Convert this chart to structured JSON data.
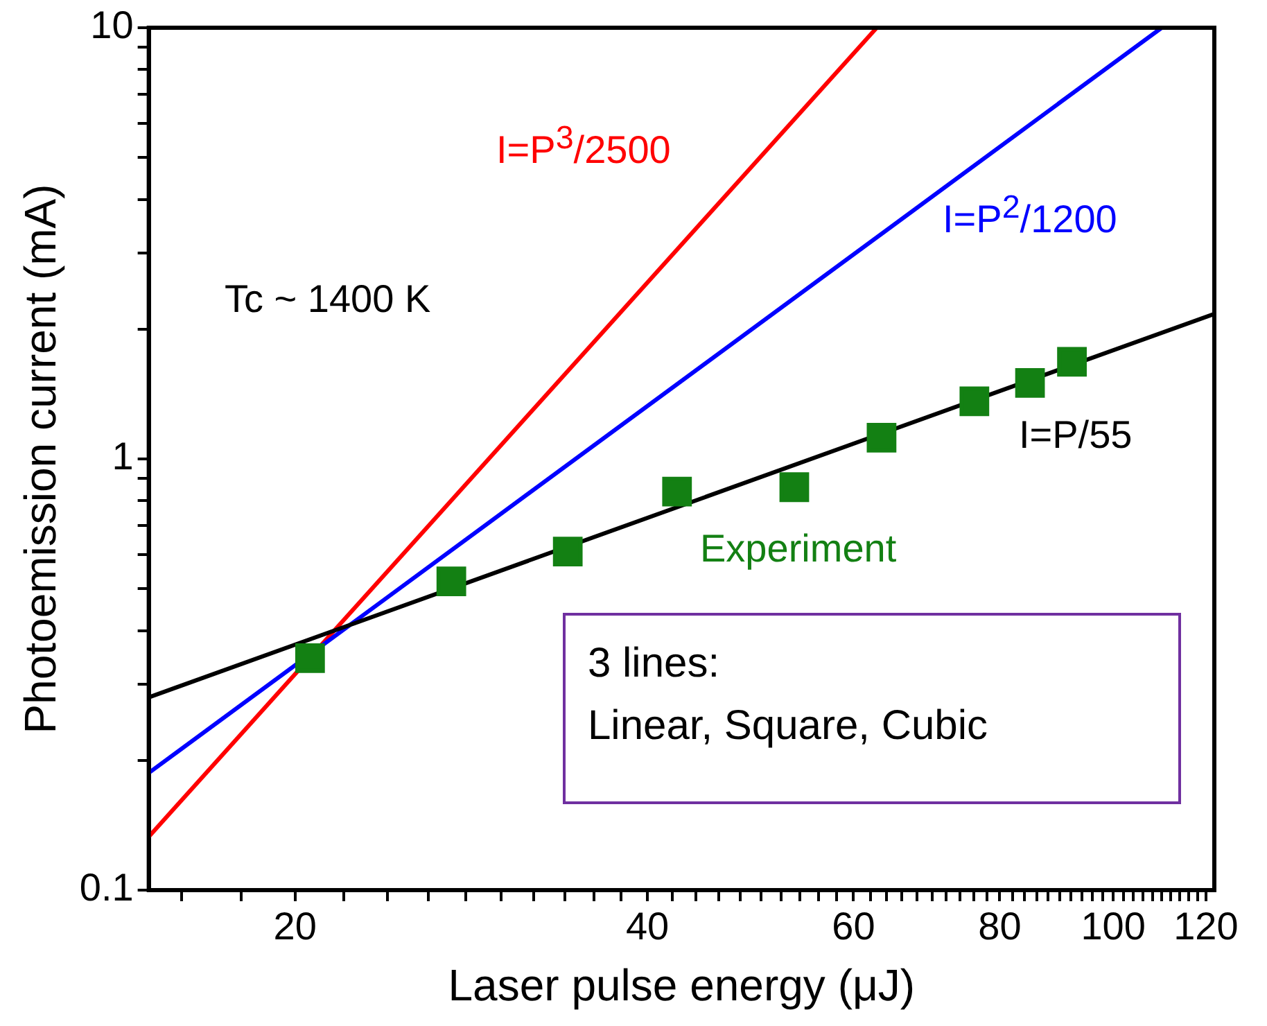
{
  "chart_data": {
    "type": "scatter",
    "xlabel": "Laser pulse energy (μJ)",
    "ylabel": "Photoemission current (mA)",
    "log": "xy",
    "grid": false,
    "legend": false,
    "xlim": [
      15,
      122
    ],
    "ylim": [
      0.1,
      10
    ],
    "xticks": [
      {
        "value": 16,
        "label": null
      },
      {
        "value": 18,
        "label": null
      },
      20,
      {
        "value": 22,
        "label": null
      },
      {
        "value": 24,
        "label": null
      },
      {
        "value": 26,
        "label": null
      },
      {
        "value": 28,
        "label": null
      },
      {
        "value": 30,
        "label": null
      },
      {
        "value": 32,
        "label": null
      },
      {
        "value": 34,
        "label": null
      },
      {
        "value": 36,
        "label": null
      },
      {
        "value": 38,
        "label": null
      },
      40,
      {
        "value": 42,
        "label": null
      },
      {
        "value": 44,
        "label": null
      },
      {
        "value": 46,
        "label": null
      },
      {
        "value": 48,
        "label": null
      },
      {
        "value": 50,
        "label": null
      },
      {
        "value": 52,
        "label": null
      },
      {
        "value": 54,
        "label": null
      },
      {
        "value": 56,
        "label": null
      },
      {
        "value": 58,
        "label": null
      },
      60,
      {
        "value": 62,
        "label": null
      },
      {
        "value": 64,
        "label": null
      },
      {
        "value": 66,
        "label": null
      },
      {
        "value": 68,
        "label": null
      },
      {
        "value": 70,
        "label": null
      },
      {
        "value": 72,
        "label": null
      },
      {
        "value": 74,
        "label": null
      },
      {
        "value": 76,
        "label": null
      },
      {
        "value": 78,
        "label": null
      },
      80,
      {
        "value": 82,
        "label": null
      },
      {
        "value": 84,
        "label": null
      },
      {
        "value": 86,
        "label": null
      },
      {
        "value": 88,
        "label": null
      },
      {
        "value": 90,
        "label": null
      },
      {
        "value": 92,
        "label": null
      },
      {
        "value": 94,
        "label": null
      },
      {
        "value": 96,
        "label": null
      },
      {
        "value": 98,
        "label": null
      },
      100,
      {
        "value": 102,
        "label": null
      },
      {
        "value": 104,
        "label": null
      },
      {
        "value": 106,
        "label": null
      },
      {
        "value": 108,
        "label": null
      },
      {
        "value": 110,
        "label": null
      },
      {
        "value": 112,
        "label": null
      },
      {
        "value": 114,
        "label": null
      },
      {
        "value": 116,
        "label": null
      },
      {
        "value": 118,
        "label": null
      },
      120
    ],
    "yticks": [
      0.1,
      {
        "value": 0.2,
        "label": null
      },
      {
        "value": 0.3,
        "label": null
      },
      {
        "value": 0.4,
        "label": null
      },
      {
        "value": 0.5,
        "label": null
      },
      {
        "value": 0.6,
        "label": null
      },
      {
        "value": 0.7,
        "label": null
      },
      {
        "value": 0.8,
        "label": null
      },
      {
        "value": 0.9,
        "label": null
      },
      1,
      {
        "value": 2,
        "label": null
      },
      {
        "value": 3,
        "label": null
      },
      {
        "value": 4,
        "label": null
      },
      {
        "value": 5,
        "label": null
      },
      {
        "value": 6,
        "label": null
      },
      {
        "value": 7,
        "label": null
      },
      {
        "value": 8,
        "label": null
      },
      {
        "value": 9,
        "label": null
      },
      10
    ],
    "series": [
      {
        "name": "Experiment",
        "type": "scatter",
        "marker": "square",
        "color": "#138013",
        "x": [
          20.6,
          27.2,
          34.2,
          42.4,
          53.4,
          63.4,
          76.1,
          84.9,
          92.2
        ],
        "values": [
          0.345,
          0.52,
          0.61,
          0.84,
          0.86,
          1.12,
          1.36,
          1.5,
          1.68
        ]
      },
      {
        "name": "I=P/55",
        "type": "line",
        "marker": "none",
        "color": "#000000",
        "x": [
          15,
          122
        ],
        "values": [
          0.28,
          2.17
        ]
      },
      {
        "name": "I=P$^{2}$/1200",
        "type": "line",
        "marker": "none",
        "color": "#0000ff",
        "x": [
          15,
          110
        ],
        "values": [
          0.187,
          10
        ]
      },
      {
        "name": "I=P$^{3}$/2500",
        "type": "line",
        "marker": "none",
        "color": "#ff0000",
        "x": [
          15,
          62.8
        ],
        "values": [
          0.133,
          10
        ]
      }
    ],
    "annotations": [
      "Tc ~ 1400 K",
      "3 lines:\nLinear, Square, Cubic"
    ]
  }
}
